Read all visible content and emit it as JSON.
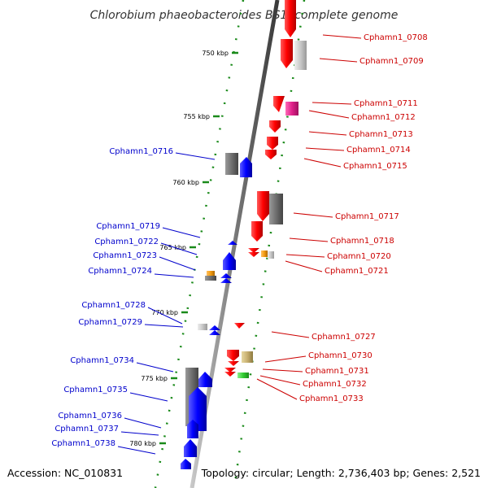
{
  "header": {
    "title": "Chlorobium phaeobacteroides BS1, complete genome"
  },
  "footer": {
    "accession": "Accession: NC_010831",
    "summary": "Topology: circular; Length: 2,736,403 bp; Genes: 2,521"
  },
  "ticks": [
    {
      "label": "750 kbp"
    },
    {
      "label": "755 kbp"
    },
    {
      "label": "760 kbp"
    },
    {
      "label": "765 kbp"
    },
    {
      "label": "770 kbp"
    },
    {
      "label": "775 kbp"
    },
    {
      "label": "780 kbp"
    }
  ],
  "colors": {
    "forward_label": "#cc0000",
    "reverse_label": "#0000cc",
    "forward_cds": "#ff0000",
    "reverse_cds": "#0000ff",
    "gray_feature": "#777777",
    "orange_feature": "#f39c12",
    "magenta_feature": "#e0208a",
    "tan_feature": "#c8b070",
    "green_feature": "#33cc33",
    "tick_green": "#1a8a1a"
  },
  "genes": [
    {
      "id": "Cphamn1_0708",
      "strand": "forward"
    },
    {
      "id": "Cphamn1_0709",
      "strand": "forward"
    },
    {
      "id": "Cphamn1_0711",
      "strand": "forward"
    },
    {
      "id": "Cphamn1_0712",
      "strand": "forward"
    },
    {
      "id": "Cphamn1_0713",
      "strand": "forward"
    },
    {
      "id": "Cphamn1_0714",
      "strand": "forward"
    },
    {
      "id": "Cphamn1_0715",
      "strand": "forward"
    },
    {
      "id": "Cphamn1_0716",
      "strand": "reverse"
    },
    {
      "id": "Cphamn1_0717",
      "strand": "forward"
    },
    {
      "id": "Cphamn1_0718",
      "strand": "forward"
    },
    {
      "id": "Cphamn1_0719",
      "strand": "reverse"
    },
    {
      "id": "Cphamn1_0720",
      "strand": "forward"
    },
    {
      "id": "Cphamn1_0721",
      "strand": "forward"
    },
    {
      "id": "Cphamn1_0722",
      "strand": "reverse"
    },
    {
      "id": "Cphamn1_0723",
      "strand": "reverse"
    },
    {
      "id": "Cphamn1_0724",
      "strand": "reverse"
    },
    {
      "id": "Cphamn1_0727",
      "strand": "forward"
    },
    {
      "id": "Cphamn1_0728",
      "strand": "reverse"
    },
    {
      "id": "Cphamn1_0729",
      "strand": "reverse"
    },
    {
      "id": "Cphamn1_0730",
      "strand": "forward"
    },
    {
      "id": "Cphamn1_0731",
      "strand": "forward"
    },
    {
      "id": "Cphamn1_0732",
      "strand": "forward"
    },
    {
      "id": "Cphamn1_0733",
      "strand": "forward"
    },
    {
      "id": "Cphamn1_0734",
      "strand": "reverse"
    },
    {
      "id": "Cphamn1_0735",
      "strand": "reverse"
    },
    {
      "id": "Cphamn1_0736",
      "strand": "reverse"
    },
    {
      "id": "Cphamn1_0737",
      "strand": "reverse"
    },
    {
      "id": "Cphamn1_0738",
      "strand": "reverse"
    }
  ]
}
